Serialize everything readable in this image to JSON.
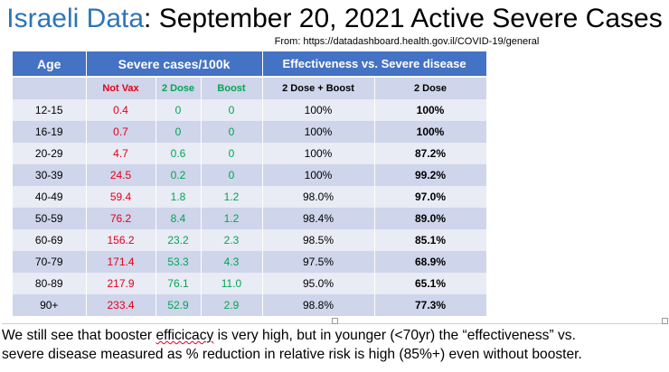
{
  "title": {
    "brand": "Israeli Data",
    "rest": ": September 20, 2021 Active Severe Cases"
  },
  "source": "From: https://datadashboard.health.gov.il/COVID-19/general",
  "table": {
    "headers": {
      "age": "Age",
      "severe": "Severe cases/100k",
      "effectiveness": "Effectiveness vs. Severe disease"
    },
    "subheaders": {
      "not_vax": "Not Vax",
      "two_dose": "2 Dose",
      "boost": "Boost",
      "eff_boost": "2 Dose + Boost",
      "eff_two": "2 Dose"
    },
    "rows": [
      {
        "age": "12-15",
        "not_vax": "0.4",
        "two_dose": "0",
        "boost": "0",
        "eff_boost": "100%",
        "eff_two": "100%"
      },
      {
        "age": "16-19",
        "not_vax": "0.7",
        "two_dose": "0",
        "boost": "0",
        "eff_boost": "100%",
        "eff_two": "100%"
      },
      {
        "age": "20-29",
        "not_vax": "4.7",
        "two_dose": "0.6",
        "boost": "0",
        "eff_boost": "100%",
        "eff_two": "87.2%"
      },
      {
        "age": "30-39",
        "not_vax": "24.5",
        "two_dose": "0.2",
        "boost": "0",
        "eff_boost": "100%",
        "eff_two": "99.2%"
      },
      {
        "age": "40-49",
        "not_vax": "59.4",
        "two_dose": "1.8",
        "boost": "1.2",
        "eff_boost": "98.0%",
        "eff_two": "97.0%"
      },
      {
        "age": "50-59",
        "not_vax": "76.2",
        "two_dose": "8.4",
        "boost": "1.2",
        "eff_boost": "98.4%",
        "eff_two": "89.0%"
      },
      {
        "age": "60-69",
        "not_vax": "156.2",
        "two_dose": "23.2",
        "boost": "2.3",
        "eff_boost": "98.5%",
        "eff_two": "85.1%"
      },
      {
        "age": "70-79",
        "not_vax": "171.4",
        "two_dose": "53.3",
        "boost": "4.3",
        "eff_boost": "97.5%",
        "eff_two": "68.9%"
      },
      {
        "age": "80-89",
        "not_vax": "217.9",
        "two_dose": "76.1",
        "boost": "11.0",
        "eff_boost": "95.0%",
        "eff_two": "65.1%"
      },
      {
        "age": "90+",
        "not_vax": "233.4",
        "two_dose": "52.9",
        "boost": "2.9",
        "eff_boost": "98.8%",
        "eff_two": "77.3%"
      }
    ]
  },
  "caption": {
    "line1_pre": "We still see that booster ",
    "line1_squig": "efficicacy",
    "line1_post": " is very high, but in younger (<70yr) the “effectiveness” vs.",
    "line2": "severe disease measured as % reduction in relative risk is high (85%+) even without booster."
  },
  "colors": {
    "brand": "#2e75b6",
    "header_bg": "#4472c4",
    "row_light": "#e9ebf5",
    "row_dark": "#cfd5ea",
    "not_vax": "#e3001b",
    "vaxed": "#00a651"
  }
}
